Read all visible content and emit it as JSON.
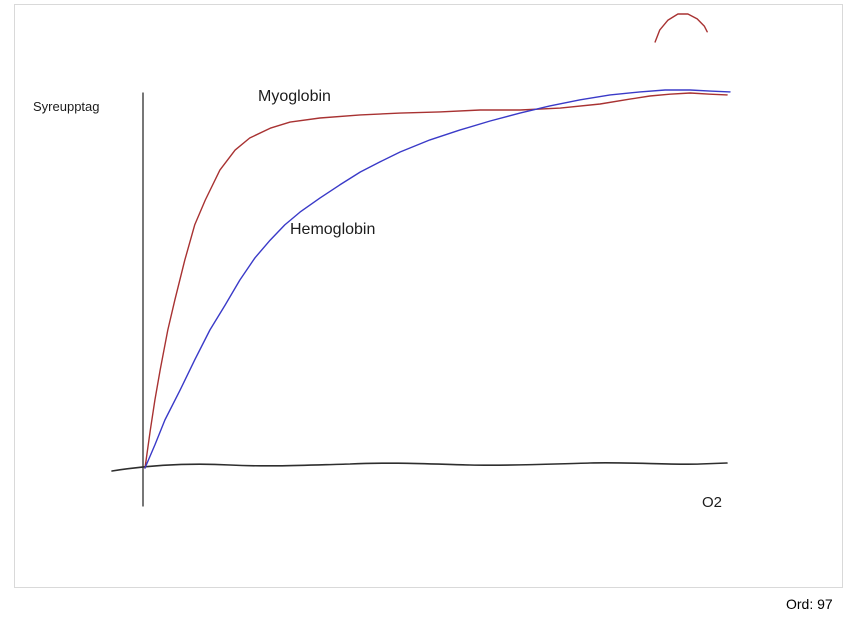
{
  "status": {
    "word_count": "Ord: 97"
  },
  "chart_data": {
    "type": "line",
    "title": "",
    "ylabel": "Syreupptag",
    "xlabel": "O2",
    "xlim": [
      0,
      100
    ],
    "ylim": [
      0,
      100
    ],
    "axes_unlabeled": true,
    "grid": false,
    "legend": "inline-labels",
    "axis_color": "#2e2e2e",
    "series": [
      {
        "name": "Myoglobin",
        "color": "#a83232",
        "points": [
          [
            0,
            0
          ],
          [
            0.9,
            10
          ],
          [
            1.7,
            18
          ],
          [
            2.6,
            26
          ],
          [
            3.9,
            36.5
          ],
          [
            5.1,
            44.4
          ],
          [
            6.8,
            55
          ],
          [
            8.5,
            64.3
          ],
          [
            10.3,
            70.9
          ],
          [
            12.8,
            78.8
          ],
          [
            15.4,
            84.1
          ],
          [
            17.9,
            87.3
          ],
          [
            21.4,
            89.9
          ],
          [
            24.8,
            91.5
          ],
          [
            29.9,
            92.6
          ],
          [
            36.8,
            93.4
          ],
          [
            43.6,
            93.9
          ],
          [
            50.4,
            94.2
          ],
          [
            57.3,
            94.7
          ],
          [
            64.1,
            94.7
          ],
          [
            71,
            95.2
          ],
          [
            77.8,
            96.3
          ],
          [
            82.9,
            97.6
          ],
          [
            86.3,
            98.4
          ],
          [
            89.7,
            98.9
          ],
          [
            93.2,
            99.2
          ],
          [
            96.6,
            98.9
          ],
          [
            99.5,
            98.7
          ]
        ]
      },
      {
        "name": "Hemoglobin",
        "color": "#3a3ac8",
        "points": [
          [
            0,
            0
          ],
          [
            1.7,
            6.1
          ],
          [
            3.4,
            12.7
          ],
          [
            6,
            20.6
          ],
          [
            8.5,
            28.6
          ],
          [
            11.1,
            36.5
          ],
          [
            13.7,
            43.1
          ],
          [
            16.2,
            49.7
          ],
          [
            18.8,
            55.6
          ],
          [
            21.4,
            60.3
          ],
          [
            23.9,
            64.3
          ],
          [
            26.5,
            67.7
          ],
          [
            29.9,
            71.4
          ],
          [
            33.3,
            74.9
          ],
          [
            36.8,
            78.3
          ],
          [
            40.2,
            81
          ],
          [
            43.6,
            83.6
          ],
          [
            48.7,
            86.8
          ],
          [
            53.8,
            89.4
          ],
          [
            59,
            91.8
          ],
          [
            64.1,
            93.9
          ],
          [
            69.2,
            95.8
          ],
          [
            74.4,
            97.4
          ],
          [
            79.5,
            98.7
          ],
          [
            84.6,
            99.5
          ],
          [
            88.9,
            100
          ],
          [
            93.2,
            100
          ],
          [
            96.6,
            99.7
          ],
          [
            100,
            99.5
          ]
        ]
      },
      {
        "name": "stray-stroke",
        "color": "#a83232",
        "points": [
          [
            87.2,
            112.7
          ],
          [
            88,
            115.9
          ],
          [
            89.4,
            118.5
          ],
          [
            91.1,
            120.1
          ],
          [
            92.8,
            120.1
          ],
          [
            94.4,
            118.8
          ],
          [
            95.6,
            116.9
          ],
          [
            96.1,
            115.4
          ]
        ]
      }
    ]
  }
}
